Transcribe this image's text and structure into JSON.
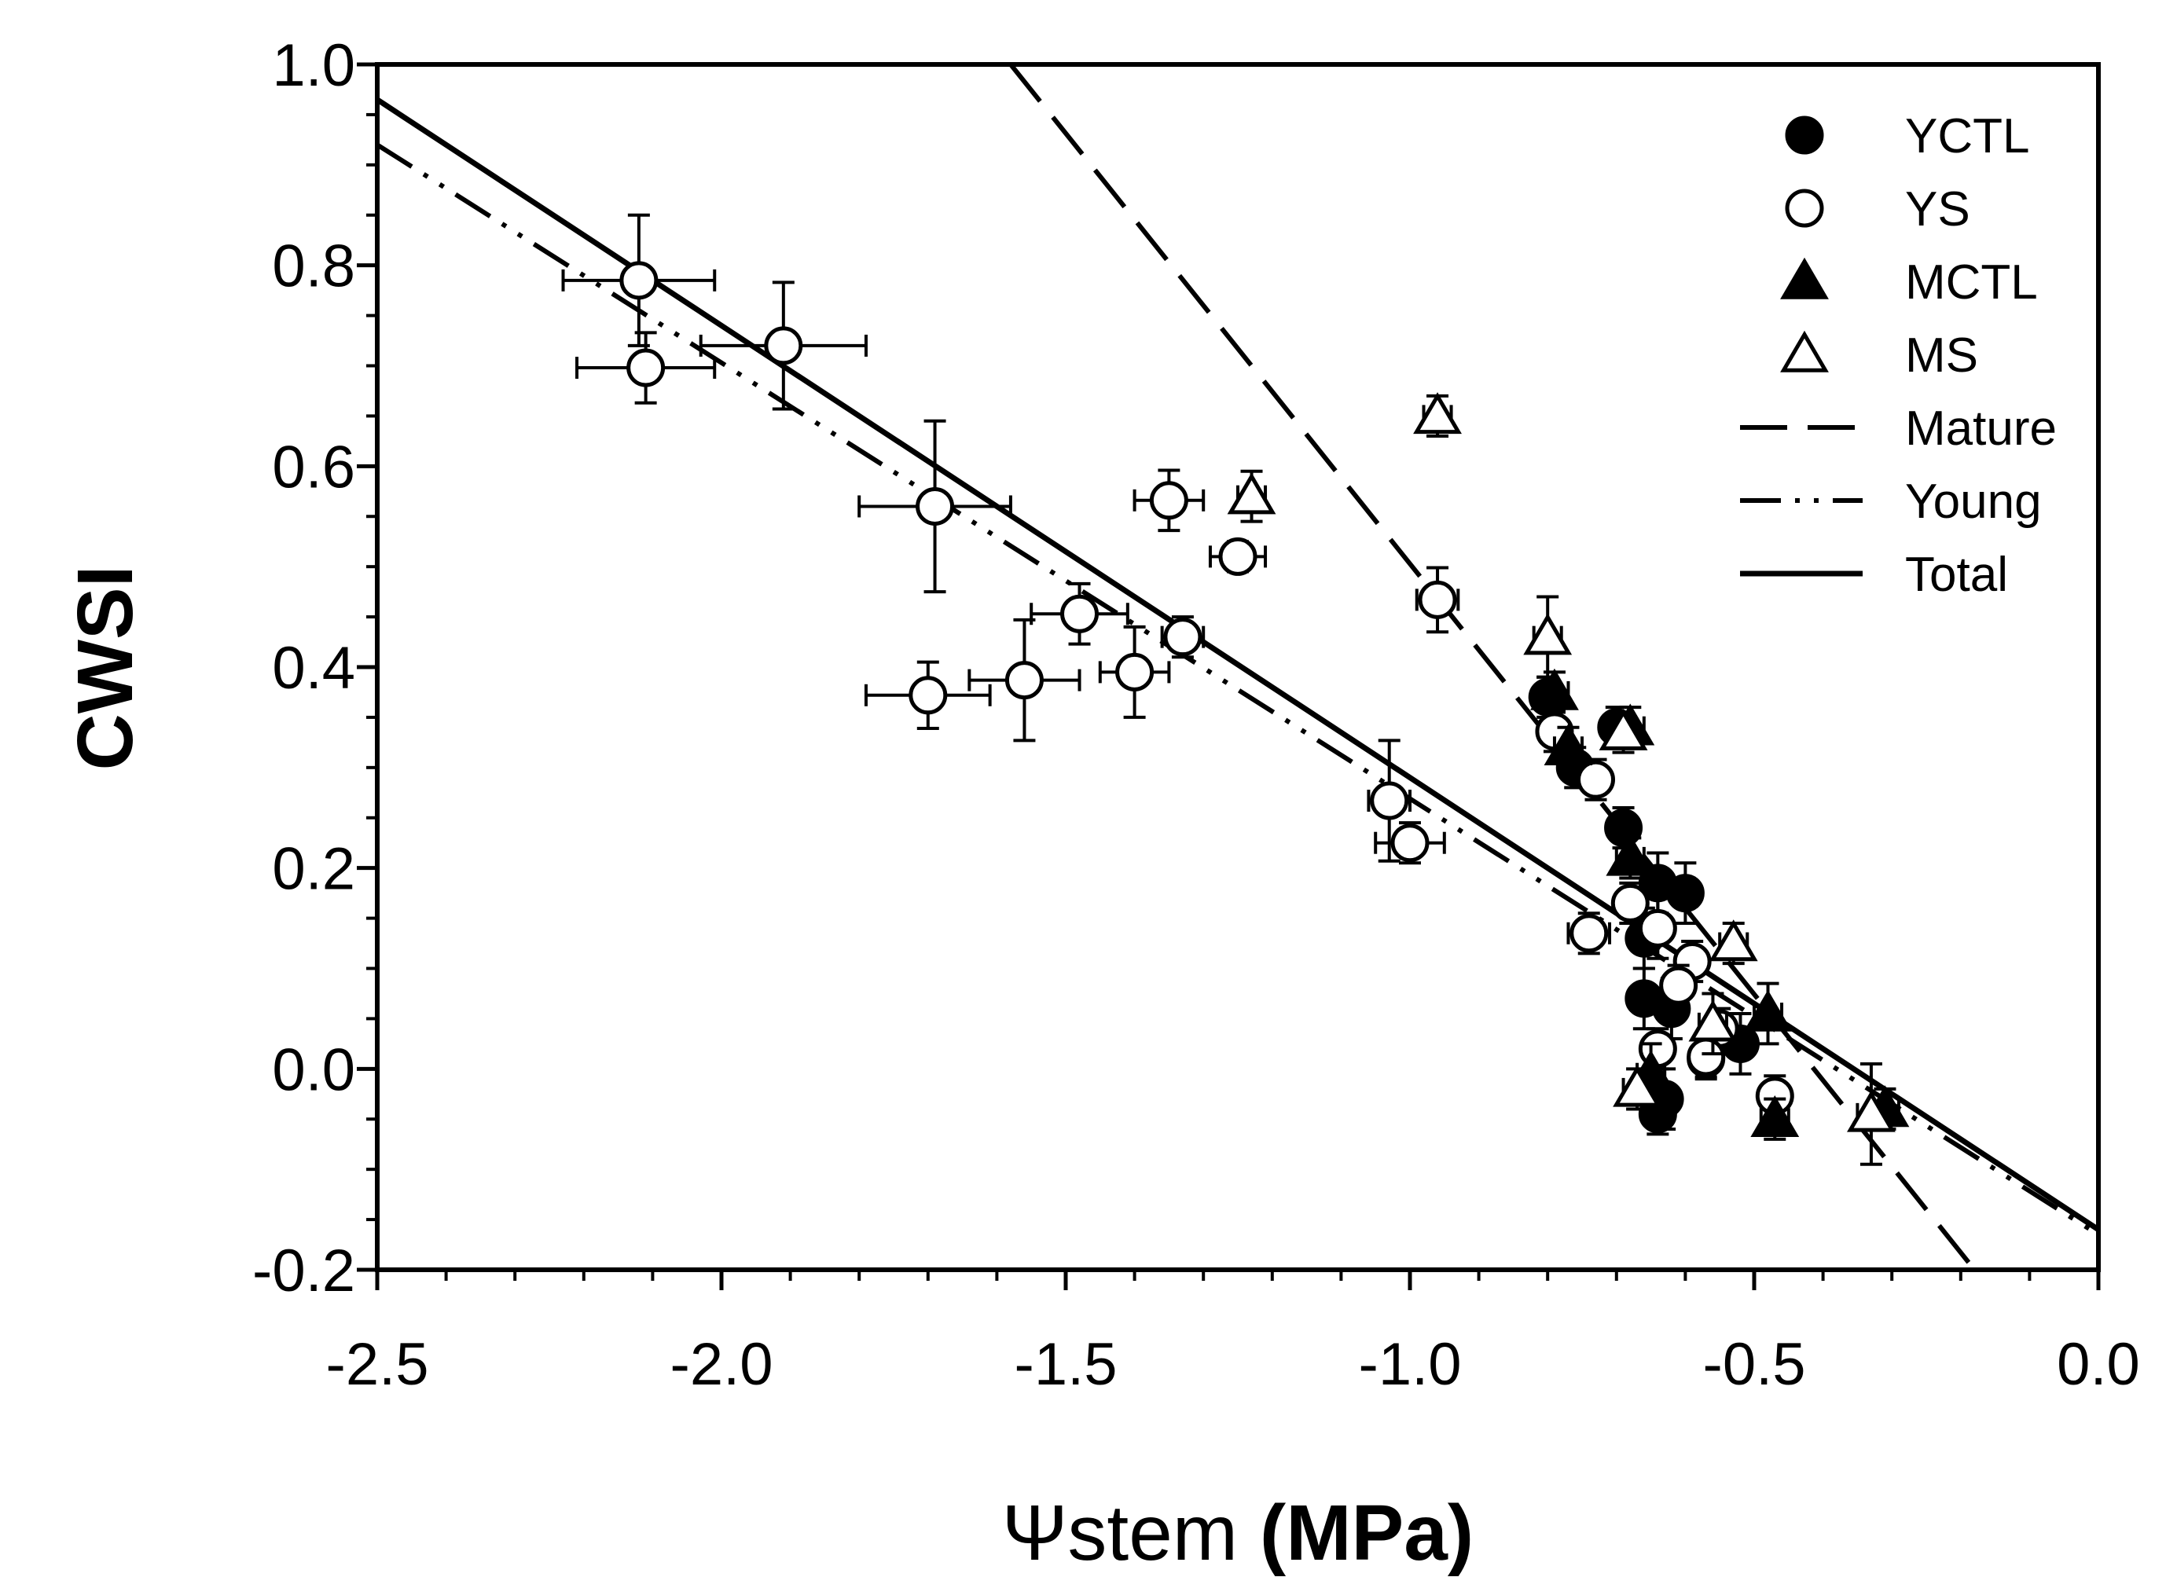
{
  "chart_data": {
    "type": "scatter",
    "xlabel_symbol": "Ψ",
    "xlabel_text": "stem",
    "xlabel_unit": "(MPa)",
    "ylabel": "CWSI",
    "xlim": [
      -2.5,
      0.0
    ],
    "ylim": [
      -0.2,
      1.0
    ],
    "xticks": [
      -2.5,
      -2.0,
      -1.5,
      -1.0,
      -0.5,
      0.0
    ],
    "xtick_labels": [
      "-2.5",
      "-2.0",
      "-1.5",
      "-1.0",
      "-0.5",
      "0.0"
    ],
    "yticks": [
      -0.2,
      0.0,
      0.2,
      0.4,
      0.6,
      0.8,
      1.0
    ],
    "ytick_labels": [
      "-0.2",
      "0.0",
      "0.2",
      "0.4",
      "0.6",
      "0.8",
      "1.0"
    ],
    "legend": {
      "position": "top-right",
      "entries": [
        {
          "label": "YCTL",
          "kind": "filled-circle"
        },
        {
          "label": "YS",
          "kind": "open-circle"
        },
        {
          "label": "MCTL",
          "kind": "filled-triangle"
        },
        {
          "label": "MS",
          "kind": "open-triangle"
        },
        {
          "label": "Mature",
          "kind": "dash"
        },
        {
          "label": "Young",
          "kind": "dashdotdot"
        },
        {
          "label": "Total",
          "kind": "solid"
        }
      ]
    },
    "fits": [
      {
        "name": "Mature",
        "style": "dash",
        "x": [
          -1.58,
          -0.18
        ],
        "y": [
          1.0,
          -0.2
        ]
      },
      {
        "name": "Young",
        "style": "dashdotdot",
        "x": [
          -2.5,
          0.0
        ],
        "y": [
          0.92,
          -0.165
        ]
      },
      {
        "name": "Total",
        "style": "solid",
        "x": [
          -2.5,
          0.0
        ],
        "y": [
          0.965,
          -0.16
        ]
      }
    ],
    "series": [
      {
        "name": "YCTL",
        "marker": "filled-circle",
        "points": [
          {
            "x": -0.8,
            "y": 0.37,
            "yerr": 0.02,
            "xerr": 0.02
          },
          {
            "x": -0.7,
            "y": 0.34,
            "yerr": 0.02,
            "xerr": 0.02
          },
          {
            "x": -0.76,
            "y": 0.3,
            "yerr": 0.02,
            "xerr": 0.02
          },
          {
            "x": -0.69,
            "y": 0.24,
            "yerr": 0.02,
            "xerr": 0.02
          },
          {
            "x": -0.64,
            "y": 0.185,
            "yerr": 0.03,
            "xerr": 0.02
          },
          {
            "x": -0.6,
            "y": 0.175,
            "yerr": 0.03,
            "xerr": 0.02
          },
          {
            "x": -0.66,
            "y": 0.13,
            "yerr": 0.03,
            "xerr": 0.02
          },
          {
            "x": -0.66,
            "y": 0.07,
            "yerr": 0.03,
            "xerr": 0.02
          },
          {
            "x": -0.62,
            "y": 0.06,
            "yerr": 0.03,
            "xerr": 0.02
          },
          {
            "x": -0.52,
            "y": 0.025,
            "yerr": 0.03,
            "xerr": 0.02
          },
          {
            "x": -0.63,
            "y": -0.03,
            "yerr": 0.03,
            "xerr": 0.02
          },
          {
            "x": -0.64,
            "y": -0.045,
            "yerr": 0.02,
            "xerr": 0.02
          },
          {
            "x": -0.57,
            "y": 0.01,
            "yerr": 0.02,
            "xerr": 0.02
          }
        ]
      },
      {
        "name": "YS",
        "marker": "open-circle",
        "points": [
          {
            "x": -2.12,
            "y": 0.785,
            "yerr": 0.065,
            "xerr": 0.11
          },
          {
            "x": -2.11,
            "y": 0.698,
            "yerr": 0.035,
            "xerr": 0.1
          },
          {
            "x": -1.91,
            "y": 0.72,
            "yerr": 0.063,
            "xerr": 0.12
          },
          {
            "x": -1.69,
            "y": 0.56,
            "yerr": 0.085,
            "xerr": 0.11
          },
          {
            "x": -1.35,
            "y": 0.566,
            "yerr": 0.03,
            "xerr": 0.05
          },
          {
            "x": -1.25,
            "y": 0.51,
            "yerr": 0.015,
            "xerr": 0.04
          },
          {
            "x": -1.48,
            "y": 0.453,
            "yerr": 0.03,
            "xerr": 0.07
          },
          {
            "x": -1.33,
            "y": 0.43,
            "yerr": 0.02,
            "xerr": 0.03
          },
          {
            "x": -1.4,
            "y": 0.395,
            "yerr": 0.045,
            "xerr": 0.05
          },
          {
            "x": -1.56,
            "y": 0.387,
            "yerr": 0.06,
            "xerr": 0.08
          },
          {
            "x": -1.7,
            "y": 0.372,
            "yerr": 0.033,
            "xerr": 0.09
          },
          {
            "x": -0.96,
            "y": 0.467,
            "yerr": 0.032,
            "xerr": 0.03
          },
          {
            "x": -1.03,
            "y": 0.267,
            "yerr": 0.06,
            "xerr": 0.03
          },
          {
            "x": -1.0,
            "y": 0.225,
            "yerr": 0.02,
            "xerr": 0.05
          },
          {
            "x": -0.79,
            "y": 0.336,
            "yerr": 0.02,
            "xerr": 0.02
          },
          {
            "x": -0.73,
            "y": 0.288,
            "yerr": 0.02,
            "xerr": 0.02
          },
          {
            "x": -0.68,
            "y": 0.165,
            "yerr": 0.02,
            "xerr": 0.02
          },
          {
            "x": -0.64,
            "y": 0.14,
            "yerr": 0.03,
            "xerr": 0.02
          },
          {
            "x": -0.74,
            "y": 0.135,
            "yerr": 0.02,
            "xerr": 0.03
          },
          {
            "x": -0.59,
            "y": 0.107,
            "yerr": 0.02,
            "xerr": 0.02
          },
          {
            "x": -0.61,
            "y": 0.083,
            "yerr": 0.02,
            "xerr": 0.02
          },
          {
            "x": -0.55,
            "y": 0.04,
            "yerr": 0.02,
            "xerr": 0.02
          },
          {
            "x": -0.64,
            "y": 0.02,
            "yerr": 0.02,
            "xerr": 0.02
          },
          {
            "x": -0.57,
            "y": 0.012,
            "yerr": 0.02,
            "xerr": 0.02
          },
          {
            "x": -0.47,
            "y": -0.027,
            "yerr": 0.02,
            "xerr": 0.02
          }
        ]
      },
      {
        "name": "MCTL",
        "marker": "filled-triangle",
        "points": [
          {
            "x": -0.79,
            "y": 0.375,
            "yerr": 0.02,
            "xerr": 0.02
          },
          {
            "x": -0.77,
            "y": 0.32,
            "yerr": 0.02,
            "xerr": 0.02
          },
          {
            "x": -0.68,
            "y": 0.34,
            "yerr": 0.02,
            "xerr": 0.02
          },
          {
            "x": -0.68,
            "y": 0.21,
            "yerr": 0.02,
            "xerr": 0.02
          },
          {
            "x": -0.48,
            "y": 0.055,
            "yerr": 0.03,
            "xerr": 0.02
          },
          {
            "x": -0.65,
            "y": -0.005,
            "yerr": 0.03,
            "xerr": 0.02
          },
          {
            "x": -0.47,
            "y": -0.05,
            "yerr": 0.02,
            "xerr": 0.02
          },
          {
            "x": -0.31,
            "y": -0.04,
            "yerr": 0.02,
            "xerr": 0.02
          }
        ]
      },
      {
        "name": "MS",
        "marker": "open-triangle",
        "points": [
          {
            "x": -0.96,
            "y": 0.65,
            "yerr": 0.02,
            "xerr": 0.02
          },
          {
            "x": -1.23,
            "y": 0.57,
            "yerr": 0.025,
            "xerr": 0.02
          },
          {
            "x": -0.8,
            "y": 0.43,
            "yerr": 0.04,
            "xerr": 0.02
          },
          {
            "x": -0.69,
            "y": 0.335,
            "yerr": 0.02,
            "xerr": 0.02
          },
          {
            "x": -0.53,
            "y": 0.125,
            "yerr": 0.02,
            "xerr": 0.02
          },
          {
            "x": -0.56,
            "y": 0.045,
            "yerr": 0.03,
            "xerr": 0.02
          },
          {
            "x": -0.67,
            "y": -0.02,
            "yerr": 0.02,
            "xerr": 0.02
          },
          {
            "x": -0.33,
            "y": -0.045,
            "yerr": 0.05,
            "xerr": 0.02
          }
        ]
      }
    ]
  }
}
